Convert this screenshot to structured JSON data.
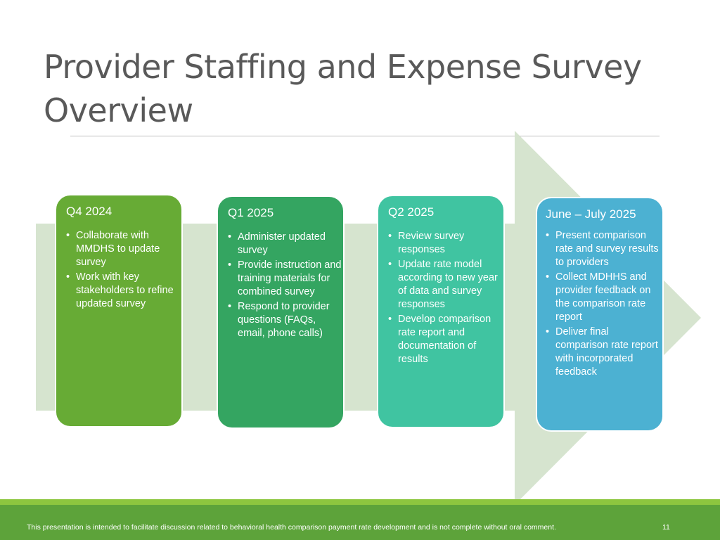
{
  "slide": {
    "title_line1": "Provider Staffing and Expense Survey",
    "title_line2": "Overview"
  },
  "timeline": {
    "arrow_color": "#d6e4cf",
    "phases": [
      {
        "title": "Q4 2024",
        "color": "#67ab35",
        "items": [
          "Collaborate with MMDHS to update survey",
          "Work with key stakeholders to refine updated survey"
        ]
      },
      {
        "title": "Q1 2025",
        "color": "#34a561",
        "items": [
          "Administer updated survey",
          "Provide instruction and training materials for combined survey",
          "Respond to provider questions (FAQs, email, phone calls)"
        ]
      },
      {
        "title": "Q2 2025",
        "color": "#40c4a1",
        "items": [
          "Review survey responses",
          "Update rate model according to new year of data and survey responses",
          "Develop comparison rate report and documentation of results"
        ]
      },
      {
        "title": "June – July 2025",
        "color": "#4cb1d2",
        "items": [
          "Present comparison rate and survey results to providers",
          "Collect MDHHS and provider feedback on the comparison rate report",
          "Deliver final comparison rate report with incorporated feedback"
        ]
      }
    ]
  },
  "footer": {
    "note": "This presentation is intended to facilitate discussion related to behavioral health comparison payment rate development and is not complete without oral comment.",
    "page_number": "11"
  }
}
